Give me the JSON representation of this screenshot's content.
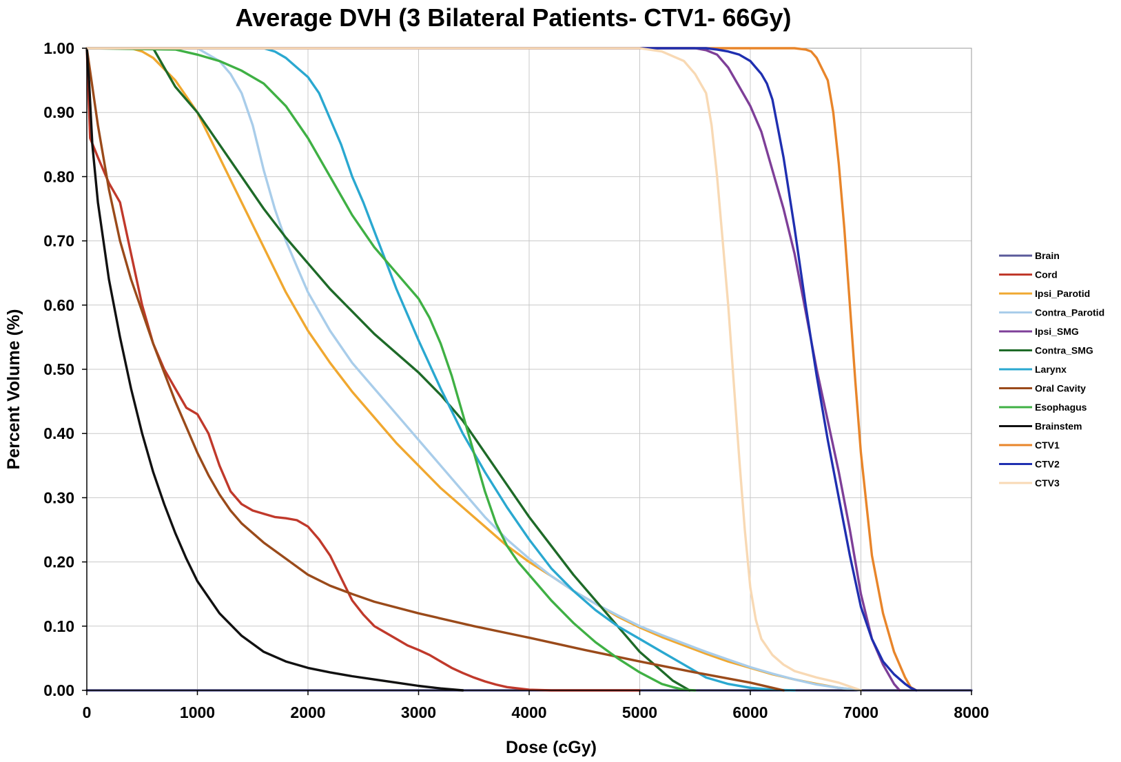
{
  "chart_data": {
    "type": "line",
    "title": "Average DVH (3 Bilateral Patients- CTV1- 66Gy)",
    "xlabel": "Dose (cGy)",
    "ylabel": "Percent Volume (%)",
    "xlim": [
      0,
      8000
    ],
    "ylim": [
      0,
      1.0
    ],
    "x_ticks": [
      "0",
      "1000",
      "2000",
      "3000",
      "4000",
      "5000",
      "6000",
      "7000",
      "8000"
    ],
    "y_ticks": [
      "0.00",
      "0.10",
      "0.20",
      "0.30",
      "0.40",
      "0.50",
      "0.60",
      "0.70",
      "0.80",
      "0.90",
      "1.00"
    ],
    "grid": true,
    "legend_position": "right",
    "series": [
      {
        "name": "Brain",
        "color": "#5a5a9a",
        "x": [
          0,
          8000
        ],
        "y": [
          0,
          0
        ]
      },
      {
        "name": "Cord",
        "color": "#c0392b",
        "x": [
          0,
          30,
          100,
          200,
          300,
          400,
          500,
          600,
          700,
          800,
          900,
          1000,
          1100,
          1200,
          1300,
          1400,
          1500,
          1600,
          1700,
          1800,
          1900,
          2000,
          2100,
          2200,
          2300,
          2400,
          2500,
          2600,
          2700,
          2800,
          2900,
          3000,
          3100,
          3200,
          3300,
          3400,
          3500,
          3600,
          3700,
          3800,
          3900,
          4000,
          4200,
          5000
        ],
        "y": [
          1.0,
          0.86,
          0.83,
          0.79,
          0.76,
          0.68,
          0.6,
          0.54,
          0.5,
          0.47,
          0.44,
          0.43,
          0.4,
          0.35,
          0.31,
          0.29,
          0.28,
          0.275,
          0.27,
          0.268,
          0.265,
          0.255,
          0.235,
          0.21,
          0.175,
          0.14,
          0.118,
          0.1,
          0.09,
          0.08,
          0.07,
          0.063,
          0.055,
          0.045,
          0.035,
          0.027,
          0.02,
          0.014,
          0.009,
          0.005,
          0.003,
          0.001,
          0.0,
          0.0
        ]
      },
      {
        "name": "Ipsi_Parotid",
        "color": "#f0a830",
        "x": [
          0,
          400,
          500,
          600,
          800,
          1000,
          1200,
          1400,
          1600,
          1800,
          2000,
          2200,
          2400,
          2600,
          2800,
          3000,
          3200,
          3400,
          3600,
          3800,
          4000,
          4200,
          4400,
          4600,
          4800,
          5000,
          5200,
          5400,
          5600,
          5800,
          6000,
          6200,
          6400,
          6600,
          6800,
          7000
        ],
        "y": [
          1.0,
          1.0,
          0.995,
          0.985,
          0.95,
          0.9,
          0.83,
          0.76,
          0.69,
          0.62,
          0.56,
          0.51,
          0.465,
          0.425,
          0.385,
          0.35,
          0.315,
          0.285,
          0.255,
          0.225,
          0.2,
          0.178,
          0.155,
          0.135,
          0.115,
          0.098,
          0.083,
          0.07,
          0.057,
          0.045,
          0.035,
          0.025,
          0.017,
          0.01,
          0.004,
          0.0
        ]
      },
      {
        "name": "Contra_Parotid",
        "color": "#a9cdea",
        "x": [
          0,
          1000,
          1100,
          1200,
          1300,
          1400,
          1500,
          1600,
          1700,
          1800,
          1900,
          2000,
          2200,
          2400,
          2600,
          2800,
          3000,
          3200,
          3400,
          3600,
          3800,
          4000,
          4200,
          4400,
          4600,
          4800,
          5000,
          5200,
          5400,
          5600,
          5800,
          6000,
          6200,
          6400,
          6600,
          6800,
          7000
        ],
        "y": [
          1.0,
          1.0,
          0.99,
          0.98,
          0.96,
          0.93,
          0.88,
          0.81,
          0.75,
          0.7,
          0.66,
          0.62,
          0.56,
          0.51,
          0.47,
          0.43,
          0.39,
          0.35,
          0.31,
          0.27,
          0.235,
          0.205,
          0.178,
          0.155,
          0.135,
          0.117,
          0.1,
          0.086,
          0.073,
          0.06,
          0.048,
          0.036,
          0.026,
          0.017,
          0.009,
          0.004,
          0.0
        ]
      },
      {
        "name": "Ipsi_SMG",
        "color": "#7e3f98",
        "x": [
          0,
          5500,
          5600,
          5700,
          5800,
          5900,
          6000,
          6100,
          6200,
          6300,
          6400,
          6500,
          6600,
          6700,
          6800,
          6900,
          7000,
          7100,
          7200,
          7300,
          7350
        ],
        "y": [
          1.0,
          1.0,
          0.997,
          0.99,
          0.97,
          0.94,
          0.91,
          0.87,
          0.81,
          0.75,
          0.68,
          0.59,
          0.5,
          0.42,
          0.34,
          0.25,
          0.15,
          0.08,
          0.04,
          0.01,
          0.0
        ]
      },
      {
        "name": "Contra_SMG",
        "color": "#1e6a28",
        "x": [
          0,
          600,
          700,
          800,
          900,
          1000,
          1200,
          1400,
          1600,
          1800,
          2000,
          2200,
          2400,
          2600,
          2800,
          3000,
          3200,
          3400,
          3600,
          3800,
          4000,
          4200,
          4400,
          4600,
          4800,
          5000,
          5200,
          5300,
          5400,
          5450
        ],
        "y": [
          1.0,
          1.0,
          0.97,
          0.94,
          0.92,
          0.9,
          0.85,
          0.8,
          0.75,
          0.705,
          0.665,
          0.625,
          0.59,
          0.555,
          0.525,
          0.495,
          0.46,
          0.42,
          0.37,
          0.32,
          0.27,
          0.225,
          0.18,
          0.14,
          0.1,
          0.06,
          0.03,
          0.015,
          0.005,
          0.0
        ]
      },
      {
        "name": "Larynx",
        "color": "#2aa8d0",
        "x": [
          0,
          1600,
          1700,
          1800,
          1900,
          2000,
          2100,
          2200,
          2300,
          2400,
          2500,
          2600,
          2700,
          2800,
          2900,
          3000,
          3200,
          3400,
          3600,
          3800,
          4000,
          4200,
          4400,
          4600,
          4800,
          5000,
          5200,
          5400,
          5600,
          5800,
          6000,
          6200,
          6400
        ],
        "y": [
          1.0,
          1.0,
          0.995,
          0.985,
          0.97,
          0.955,
          0.93,
          0.89,
          0.85,
          0.8,
          0.76,
          0.715,
          0.67,
          0.625,
          0.585,
          0.545,
          0.47,
          0.4,
          0.34,
          0.285,
          0.235,
          0.19,
          0.155,
          0.125,
          0.1,
          0.08,
          0.06,
          0.04,
          0.02,
          0.01,
          0.004,
          0.001,
          0.0
        ]
      },
      {
        "name": "Oral Cavity",
        "color": "#9a4a1a",
        "x": [
          0,
          100,
          200,
          300,
          400,
          500,
          600,
          700,
          800,
          900,
          1000,
          1100,
          1200,
          1300,
          1400,
          1500,
          1600,
          1800,
          2000,
          2200,
          2400,
          2600,
          3000,
          3500,
          4000,
          4500,
          5000,
          5500,
          6000,
          6200,
          6300
        ],
        "y": [
          1.0,
          0.88,
          0.78,
          0.7,
          0.64,
          0.59,
          0.54,
          0.495,
          0.45,
          0.41,
          0.37,
          0.335,
          0.305,
          0.28,
          0.26,
          0.245,
          0.23,
          0.205,
          0.18,
          0.163,
          0.15,
          0.138,
          0.12,
          0.1,
          0.082,
          0.063,
          0.045,
          0.028,
          0.012,
          0.004,
          0.0
        ]
      },
      {
        "name": "Esophagus",
        "color": "#3fb044",
        "x": [
          0,
          800,
          1000,
          1200,
          1400,
          1600,
          1800,
          2000,
          2200,
          2400,
          2600,
          2800,
          3000,
          3100,
          3200,
          3300,
          3400,
          3500,
          3600,
          3700,
          3800,
          3900,
          4000,
          4200,
          4400,
          4600,
          4800,
          5000,
          5200,
          5300,
          5400,
          5500
        ],
        "y": [
          1.0,
          0.998,
          0.99,
          0.98,
          0.965,
          0.945,
          0.91,
          0.86,
          0.8,
          0.74,
          0.69,
          0.65,
          0.61,
          0.58,
          0.54,
          0.49,
          0.43,
          0.37,
          0.31,
          0.26,
          0.225,
          0.2,
          0.18,
          0.14,
          0.105,
          0.075,
          0.05,
          0.028,
          0.01,
          0.005,
          0.001,
          0.0
        ]
      },
      {
        "name": "Brainstem",
        "color": "#111111",
        "x": [
          0,
          20,
          50,
          100,
          200,
          300,
          400,
          500,
          600,
          700,
          800,
          900,
          1000,
          1200,
          1400,
          1600,
          1800,
          2000,
          2200,
          2400,
          2600,
          2800,
          3000,
          3200,
          3400
        ],
        "y": [
          1.0,
          0.95,
          0.85,
          0.76,
          0.64,
          0.55,
          0.47,
          0.4,
          0.34,
          0.29,
          0.245,
          0.205,
          0.17,
          0.12,
          0.085,
          0.06,
          0.045,
          0.035,
          0.028,
          0.022,
          0.017,
          0.012,
          0.007,
          0.003,
          0.0
        ]
      },
      {
        "name": "CTV1",
        "color": "#e8852a",
        "x": [
          0,
          6400,
          6500,
          6550,
          6600,
          6700,
          6750,
          6800,
          6850,
          6900,
          6950,
          7000,
          7100,
          7200,
          7300,
          7400,
          7450,
          7500
        ],
        "y": [
          1.0,
          1.0,
          0.998,
          0.995,
          0.985,
          0.95,
          0.9,
          0.82,
          0.72,
          0.6,
          0.48,
          0.37,
          0.21,
          0.12,
          0.06,
          0.02,
          0.005,
          0.0
        ]
      },
      {
        "name": "CTV2",
        "color": "#1f2fb0",
        "x": [
          0,
          5600,
          5700,
          5800,
          5900,
          6000,
          6050,
          6100,
          6150,
          6200,
          6300,
          6400,
          6500,
          6600,
          6700,
          6800,
          6900,
          7000,
          7100,
          7200,
          7300,
          7400,
          7450,
          7500
        ],
        "y": [
          1.0,
          1.0,
          0.998,
          0.995,
          0.99,
          0.98,
          0.97,
          0.96,
          0.945,
          0.92,
          0.83,
          0.72,
          0.6,
          0.49,
          0.39,
          0.3,
          0.21,
          0.13,
          0.08,
          0.045,
          0.025,
          0.01,
          0.004,
          0.0
        ]
      },
      {
        "name": "CTV3",
        "color": "#f8d9b4",
        "x": [
          0,
          5000,
          5200,
          5400,
          5500,
          5600,
          5650,
          5700,
          5750,
          5800,
          5850,
          5900,
          5950,
          6000,
          6050,
          6100,
          6200,
          6300,
          6400,
          6600,
          6800,
          7000
        ],
        "y": [
          1.0,
          1.0,
          0.995,
          0.98,
          0.96,
          0.93,
          0.88,
          0.8,
          0.7,
          0.6,
          0.48,
          0.36,
          0.25,
          0.16,
          0.11,
          0.08,
          0.055,
          0.04,
          0.03,
          0.02,
          0.012,
          0.0
        ]
      }
    ]
  }
}
